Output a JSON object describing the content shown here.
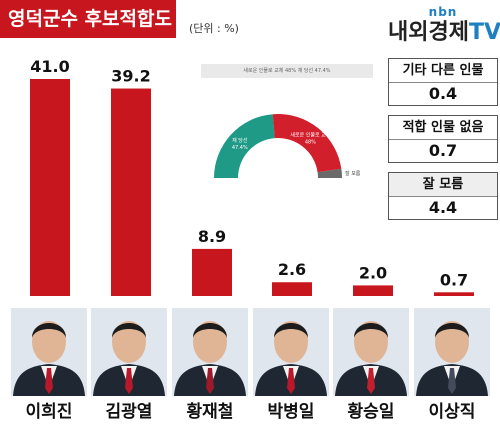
{
  "header": {
    "title": "영덕군수 후보적합도",
    "unit": "(단위 : %)",
    "logo_top": "nbn",
    "logo_main": "내외경제",
    "logo_tv": "TV"
  },
  "side_boxes": [
    {
      "label": "기타 다른 인물",
      "value": "0.4"
    },
    {
      "label": "적합 인물 없음",
      "value": "0.7"
    },
    {
      "label": "잘 모름",
      "value": "4.4"
    }
  ],
  "inset": {
    "legend": "새로운 인물로 교체 48%  재 당선 47.4%",
    "slices": [
      {
        "label": "재 당선",
        "value": 47.4,
        "display": "47.4%",
        "color": "#1e9a86"
      },
      {
        "label": "새로운 인물로 교체",
        "value": 48,
        "display": "48%",
        "color": "#d21f2c"
      },
      {
        "label": "잘 모름",
        "value": 4.6,
        "display": "",
        "color": "#6a6a6a"
      }
    ]
  },
  "chart_data": [
    {
      "type": "bar",
      "title": "영덕군수 후보적합도",
      "ylabel": "(단위 : %)",
      "categories": [
        "이희진",
        "김광열",
        "황재철",
        "박병일",
        "황승일",
        "이상직"
      ],
      "values": [
        41.0,
        39.2,
        8.9,
        2.6,
        2.0,
        0.7
      ],
      "labels": [
        "41.0",
        "39.2",
        "8.9",
        "2.6",
        "2.0",
        "0.7"
      ],
      "ylim": [
        0,
        41
      ],
      "grid": false,
      "bar_color": "#c8161e"
    },
    {
      "type": "pie",
      "categories": [
        "재 당선",
        "새로운 인물로 교체",
        "잘 모름"
      ],
      "values": [
        47.4,
        48,
        4.6
      ]
    }
  ],
  "candidates": [
    {
      "name": "이희진",
      "tie": "#b8182a"
    },
    {
      "name": "김광열",
      "tie": "#b8182a"
    },
    {
      "name": "황재철",
      "tie": "#9e1a2a"
    },
    {
      "name": "박병일",
      "tie": "#b8182a"
    },
    {
      "name": "황승일",
      "tie": "#c2202e"
    },
    {
      "name": "이상직",
      "tie": "#444c5c"
    }
  ]
}
